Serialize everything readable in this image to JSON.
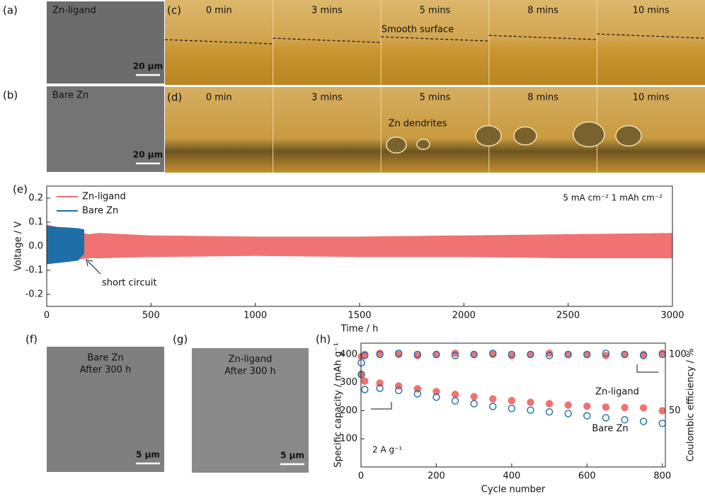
{
  "panels": [
    {
      "label": "(a)",
      "caption": "Zn-ligand",
      "scale": "20 μm"
    },
    {
      "label": "(b)",
      "caption": "Bare Zn",
      "scale": "20 μm"
    },
    {
      "label": "(c)",
      "times": [
        "0 min",
        "3 mins",
        "5 mins",
        "8 mins",
        "10 mins"
      ],
      "note": "Smooth surface"
    },
    {
      "label": "(d)",
      "times": [
        "0 min",
        "3 mins",
        "5 mins",
        "8 mins",
        "10 mins"
      ],
      "note": "Zn dendrites"
    },
    {
      "label": "(f)",
      "caption": "Bare Zn",
      "caption2": "After 300 h",
      "scale": "5 μm"
    },
    {
      "label": "(g)",
      "caption": "Zn-ligand",
      "caption2": "After 300 h",
      "scale": "5 μm"
    }
  ],
  "chart_data": [
    {
      "type": "band",
      "label": "(e)",
      "xlabel": "Time / h",
      "ylabel": "Voltage / V",
      "annotations": [
        "short circuit",
        "5 mA cm⁻²   1 mAh cm⁻²"
      ],
      "xlim": [
        0,
        3000
      ],
      "xticks": [
        0,
        500,
        1000,
        1500,
        2000,
        2500,
        3000
      ],
      "ylim": [
        -0.25,
        0.25
      ],
      "yticks": [
        0.2,
        0.1,
        {
          "value": 0,
          "label": "0.0"
        },
        -0.1,
        -0.2
      ],
      "series": [
        {
          "name": "Zn-ligand",
          "color": "#f07272",
          "x": [
            0,
            100,
            200,
            250,
            500,
            1000,
            1500,
            2000,
            2500,
            3000
          ],
          "upper": [
            0.09,
            0.07,
            0.05,
            0.055,
            0.045,
            0.04,
            0.04,
            0.045,
            0.05,
            0.055
          ],
          "lower": [
            -0.07,
            -0.06,
            -0.05,
            -0.05,
            -0.045,
            -0.04,
            -0.045,
            -0.045,
            -0.05,
            -0.05
          ]
        },
        {
          "name": "Bare Zn",
          "color": "#1f6ea8",
          "x": [
            0,
            50,
            100,
            150,
            180
          ],
          "upper": [
            0.085,
            0.08,
            0.078,
            0.075,
            0.07
          ],
          "lower": [
            -0.075,
            -0.07,
            -0.065,
            -0.06,
            -0.03
          ]
        }
      ]
    },
    {
      "type": "scatter",
      "label": "(h)",
      "xlabel": "Cycle number",
      "ylabel": "Specific capacity / mAh g⁻¹",
      "y2label": "Coulombic efficiency / %",
      "annotations": [
        "Zn-ligand",
        "Bare Zn",
        "2 A g⁻¹"
      ],
      "xlim": [
        0,
        808
      ],
      "xticks": [
        0,
        200,
        400,
        600,
        800
      ],
      "ylim": [
        0,
        440
      ],
      "yticks": [
        100,
        200,
        300,
        400
      ],
      "y2lim": [
        0,
        110
      ],
      "y2ticks": [
        50,
        100
      ],
      "x": [
        1,
        10,
        50,
        100,
        150,
        200,
        250,
        300,
        350,
        400,
        450,
        500,
        550,
        600,
        650,
        700,
        750,
        800
      ],
      "series": [
        {
          "name": "Zn-ligand",
          "color": "#f07272",
          "values": [
            330,
            305,
            298,
            288,
            278,
            268,
            258,
            250,
            242,
            236,
            230,
            225,
            220,
            216,
            213,
            211,
            210,
            200
          ]
        },
        {
          "name": "Bare Zn",
          "color": "#1f6ea8",
          "values": [
            370,
            275,
            280,
            272,
            260,
            248,
            235,
            225,
            215,
            208,
            202,
            196,
            190,
            182,
            175,
            168,
            162,
            155
          ]
        },
        {
          "name": "Zn-ligand",
          "color": "#f07272",
          "axis": "y2",
          "values": [
            98,
            100,
            101,
            100,
            99,
            100,
            101,
            100,
            100,
            99,
            100,
            101,
            100,
            100,
            99,
            100,
            100,
            101
          ]
        },
        {
          "name": "Bare Zn",
          "color": "#1f6ea8",
          "axis": "y2",
          "values": [
            82,
            99,
            100,
            101,
            100,
            100,
            99,
            100,
            101,
            100,
            100,
            99,
            100,
            100,
            101,
            100,
            99,
            100
          ]
        }
      ]
    }
  ]
}
